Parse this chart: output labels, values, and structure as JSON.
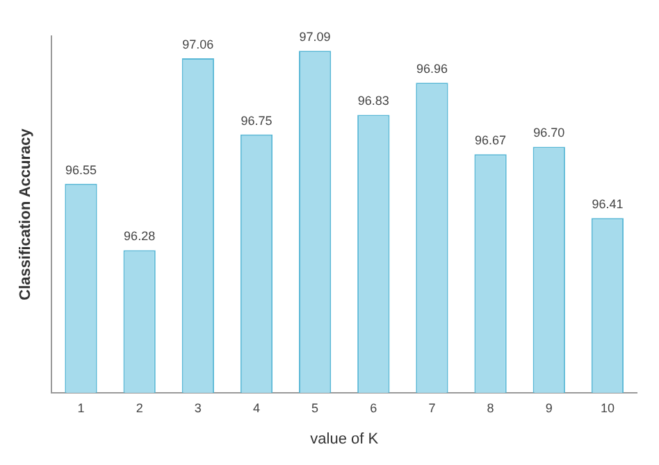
{
  "chart_data": {
    "type": "bar",
    "xlabel": "value of K",
    "ylabel": "Classification Accuracy",
    "categories": [
      "1",
      "2",
      "3",
      "4",
      "5",
      "6",
      "7",
      "8",
      "9",
      "10"
    ],
    "values": [
      96.55,
      96.28,
      97.06,
      96.75,
      97.09,
      96.83,
      96.96,
      96.67,
      96.7,
      96.41
    ],
    "value_labels": [
      "96.55",
      "96.28",
      "97.06",
      "96.75",
      "97.09",
      "96.83",
      "96.96",
      "96.67",
      "96.70",
      "96.41"
    ],
    "color": "#a6dbec",
    "ylim": [
      95.7,
      97.15
    ],
    "tick_labels": "x",
    "grid": false,
    "legend": false
  }
}
